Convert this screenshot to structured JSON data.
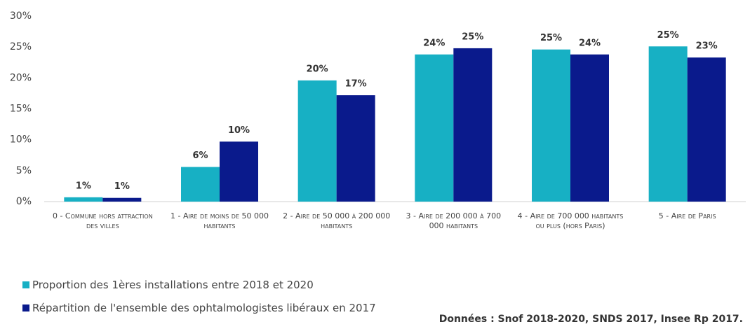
{
  "chart_data": {
    "type": "bar",
    "categories": [
      "0 - Commune hors attraction des villes",
      "1 - Aire de moins de 50 000 habitants",
      "2 - Aire de 50 000 à 200 000 habitants",
      "3 - Aire de 200 000 à 700 000 habitants",
      "4 - Aire de 700 000 habitants ou plus (hors Paris)",
      "5 - Aire de Paris"
    ],
    "series": [
      {
        "name": "Proportion des 1ères installations entre 2018 et 2020",
        "color": "#17b0c4",
        "values": [
          0.7,
          5.6,
          19.6,
          23.8,
          24.6,
          25.1
        ],
        "value_labels": [
          "1%",
          "6%",
          "20%",
          "24%",
          "25%",
          "25%"
        ]
      },
      {
        "name": "Répartition de l'ensemble des ophtalmologistes libéraux en 2017",
        "color": "#0a1a8c",
        "values": [
          0.6,
          9.7,
          17.2,
          24.8,
          23.8,
          23.3
        ],
        "value_labels": [
          "1%",
          "10%",
          "17%",
          "25%",
          "24%",
          "23%"
        ]
      }
    ],
    "ylim": [
      0,
      30
    ],
    "yticks": [
      {
        "value": 0,
        "label": "0%"
      },
      {
        "value": 5,
        "label": "5%"
      },
      {
        "value": 10,
        "label": "10%"
      },
      {
        "value": 15,
        "label": "15%"
      },
      {
        "value": 20,
        "label": "20%"
      },
      {
        "value": 25,
        "label": "25%"
      },
      {
        "value": 30,
        "label": "30%"
      }
    ],
    "source": "Données : Snof 2018-2020, SNDS 2017, Insee Rp 2017."
  }
}
